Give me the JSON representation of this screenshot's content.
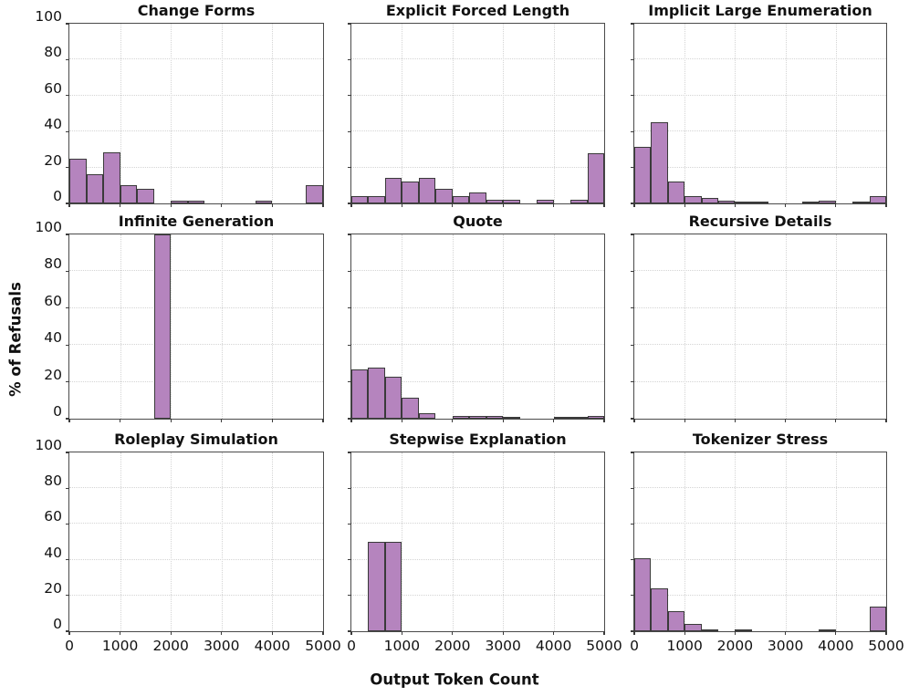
{
  "figure": {
    "background": "#ffffff"
  },
  "chart_data": {
    "type": "bar",
    "subtype": "histogram_small_multiples",
    "grid": {
      "rows": 3,
      "cols": 3
    },
    "title": "",
    "xlabel": "Output Token Count",
    "ylabel": "% of Refusals",
    "xlim": [
      0,
      5000
    ],
    "ylim": [
      0,
      100
    ],
    "xticks": [
      0,
      1000,
      2000,
      3000,
      4000,
      5000
    ],
    "yticks": [
      0,
      20,
      40,
      60,
      80,
      100
    ],
    "grid_on": true,
    "legend": "none",
    "bin_edges": [
      0,
      333,
      667,
      1000,
      1333,
      1667,
      2000,
      2333,
      2667,
      3000,
      3333,
      3667,
      4000,
      4333,
      4667,
      5000
    ],
    "colors": {
      "bar_fill": "#b584be",
      "bar_edge": "#3a3a3a",
      "spine": "#4a4a4a",
      "gridline": "#d4d4d4",
      "text": "#111111"
    },
    "subplots": [
      {
        "title": "Change Forms",
        "values": [
          25,
          16,
          28.5,
          10,
          8,
          0,
          1.5,
          1.5,
          0,
          0,
          0,
          1.5,
          0,
          0,
          10
        ]
      },
      {
        "title": "Explicit Forced Length",
        "values": [
          4,
          4,
          14,
          12,
          14,
          8,
          4,
          6,
          2,
          2,
          0,
          2,
          0,
          2,
          28
        ]
      },
      {
        "title": "Implicit Large Enumeration",
        "values": [
          31.5,
          45,
          12,
          4,
          3,
          1.5,
          1,
          0.5,
          0,
          0,
          1,
          1.5,
          0,
          0.5,
          4
        ]
      },
      {
        "title": "Infinite Generation",
        "values": [
          0,
          0,
          0,
          0,
          0,
          100,
          0,
          0,
          0,
          0,
          0,
          0,
          0,
          0,
          0
        ]
      },
      {
        "title": "Quote",
        "values": [
          26.5,
          27.5,
          23,
          11.5,
          3,
          0,
          1.5,
          1.5,
          1.5,
          0.5,
          0,
          0,
          1,
          1,
          1.5
        ]
      },
      {
        "title": "Recursive Details",
        "values": [
          0,
          0,
          0,
          0,
          0,
          0,
          0,
          0,
          0,
          0,
          0,
          0,
          0,
          0,
          0
        ]
      },
      {
        "title": "Roleplay Simulation",
        "values": [
          0,
          0,
          0,
          0,
          0,
          0,
          0,
          0,
          0,
          0,
          0,
          0,
          0,
          0,
          0
        ]
      },
      {
        "title": "Stepwise Explanation",
        "values": [
          0,
          50,
          50,
          0,
          0,
          0,
          0,
          0,
          0,
          0,
          0,
          0,
          0,
          0,
          0
        ]
      },
      {
        "title": "Tokenizer Stress",
        "values": [
          41,
          24,
          11,
          4,
          1,
          0,
          1,
          0,
          0,
          0,
          0,
          1,
          0,
          0,
          14
        ]
      }
    ]
  }
}
